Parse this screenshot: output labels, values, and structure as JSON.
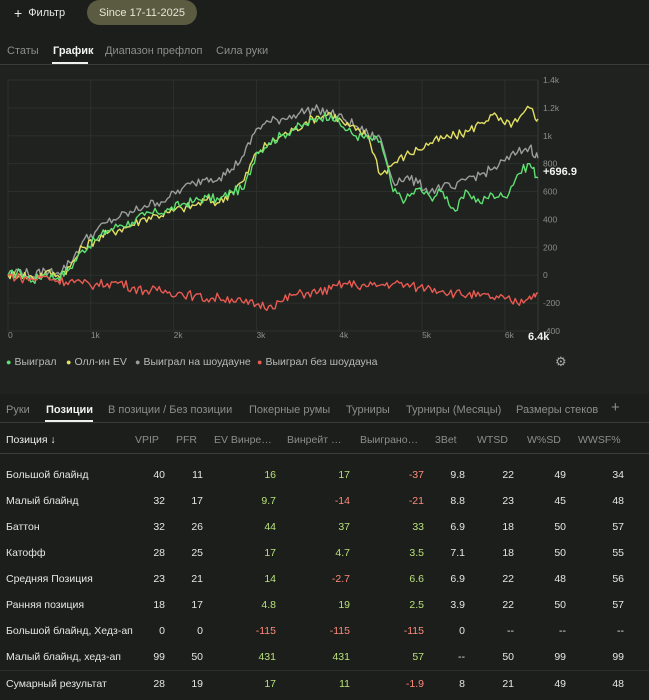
{
  "filterbar": {
    "filter_label": "Фильтр",
    "date_chip": "Since 17-11-2025"
  },
  "top_tabs": [
    "Статы",
    "График",
    "Диапазон префлоп",
    "Сила руки"
  ],
  "top_tabs_active": "График",
  "chart_data": {
    "type": "line",
    "x_tick_labels": [
      "0",
      "1k",
      "2k",
      "3k",
      "4k",
      "5k",
      "6k"
    ],
    "x_max_label": "6.4k",
    "x_range": [
      0,
      6400
    ],
    "y_tick_labels": [
      "1.4k",
      "1.2k",
      "1k",
      "800",
      "600",
      "400",
      "200",
      "0",
      "-200",
      "-400"
    ],
    "y_range": [
      -400,
      1400
    ],
    "current_value_label": "+696.9",
    "grid": true,
    "series": [
      {
        "name": "Выиграл",
        "color": "#5fe072",
        "x": [
          0,
          150,
          300,
          450,
          600,
          750,
          900,
          1050,
          1200,
          1350,
          1500,
          1650,
          1800,
          1950,
          2100,
          2250,
          2400,
          2550,
          2700,
          2850,
          3000,
          3150,
          3300,
          3450,
          3600,
          3750,
          3900,
          4050,
          4200,
          4350,
          4500,
          4650,
          4800,
          4950,
          5100,
          5250,
          5400,
          5550,
          5700,
          5850,
          6000,
          6150,
          6300,
          6400
        ],
        "y": [
          0,
          20,
          -40,
          10,
          -20,
          50,
          180,
          250,
          320,
          360,
          380,
          430,
          450,
          470,
          510,
          530,
          560,
          540,
          600,
          620,
          880,
          950,
          1000,
          1050,
          1080,
          1130,
          1150,
          1060,
          1000,
          980,
          960,
          600,
          540,
          620,
          560,
          600,
          460,
          600,
          520,
          580,
          560,
          720,
          800,
          697
        ]
      },
      {
        "name": "Олл-ин EV",
        "color": "#e3e061",
        "x": [
          0,
          150,
          300,
          450,
          600,
          750,
          900,
          1050,
          1200,
          1350,
          1500,
          1650,
          1800,
          1950,
          2100,
          2250,
          2400,
          2550,
          2700,
          2850,
          3000,
          3150,
          3300,
          3450,
          3600,
          3750,
          3900,
          4050,
          4200,
          4350,
          4500,
          4650,
          4800,
          4950,
          5100,
          5250,
          5400,
          5550,
          5700,
          5850,
          6000,
          6150,
          6300,
          6400
        ],
        "y": [
          0,
          10,
          -20,
          20,
          0,
          60,
          200,
          250,
          300,
          330,
          360,
          410,
          430,
          450,
          480,
          500,
          540,
          520,
          600,
          680,
          880,
          940,
          1000,
          1040,
          1100,
          1140,
          1160,
          1090,
          1040,
          1000,
          720,
          800,
          860,
          900,
          950,
          980,
          1000,
          1030,
          1090,
          1150,
          1080,
          1100,
          1200,
          1120
        ]
      },
      {
        "name": "Выиграл на шоудауне",
        "color": "#9a9d9a",
        "x": [
          0,
          150,
          300,
          450,
          600,
          750,
          900,
          1050,
          1200,
          1350,
          1500,
          1650,
          1800,
          1950,
          2100,
          2250,
          2400,
          2550,
          2700,
          2850,
          3000,
          3150,
          3300,
          3450,
          3600,
          3750,
          3900,
          4050,
          4200,
          4350,
          4500,
          4650,
          4800,
          4950,
          5100,
          5250,
          5400,
          5550,
          5700,
          5850,
          6000,
          6150,
          6300,
          6400
        ],
        "y": [
          0,
          40,
          -10,
          30,
          20,
          90,
          240,
          310,
          380,
          420,
          450,
          500,
          520,
          560,
          620,
          660,
          700,
          700,
          760,
          860,
          1050,
          1100,
          1120,
          1150,
          1180,
          1190,
          1160,
          1120,
          1070,
          1010,
          980,
          670,
          700,
          660,
          600,
          640,
          620,
          700,
          720,
          760,
          820,
          880,
          920,
          840
        ]
      },
      {
        "name": "Выиграл без шоудауна",
        "color": "#e85a52",
        "x": [
          0,
          150,
          300,
          450,
          600,
          750,
          900,
          1050,
          1200,
          1350,
          1500,
          1650,
          1800,
          1950,
          2100,
          2250,
          2400,
          2550,
          2700,
          2850,
          3000,
          3150,
          3300,
          3450,
          3600,
          3750,
          3900,
          4050,
          4200,
          4350,
          4500,
          4650,
          4800,
          4950,
          5100,
          5250,
          5400,
          5550,
          5700,
          5850,
          6000,
          6150,
          6300,
          6400
        ],
        "y": [
          0,
          -20,
          -30,
          -10,
          -40,
          -40,
          -60,
          -70,
          -60,
          -50,
          -90,
          -110,
          -110,
          -120,
          -130,
          -150,
          -170,
          -160,
          -170,
          -200,
          -210,
          -220,
          -190,
          -140,
          -130,
          -120,
          -100,
          -60,
          -70,
          -80,
          -70,
          -60,
          -70,
          -90,
          -90,
          -110,
          -130,
          -140,
          -150,
          -160,
          -170,
          -200,
          -150,
          -130
        ]
      }
    ]
  },
  "legend_gear": "gear-icon",
  "bottom_tabs": [
    "Руки",
    "Позиции",
    "В позиции / Без позиции",
    "Покерные румы",
    "Турниры",
    "Турниры (Месяцы)",
    "Размеры стеков"
  ],
  "bottom_tabs_active": "Позиции",
  "table": {
    "headers": [
      "Позиция ↓",
      "VPIP",
      "PFR",
      "EV Винре…",
      "Винрейт …",
      "Выиграно…",
      "3Bet",
      "WTSD",
      "W%SD",
      "WWSF%"
    ],
    "rows": [
      [
        "Большой блайнд",
        "40",
        "11",
        "16",
        "17",
        "-37",
        "9.8",
        "22",
        "49",
        "34"
      ],
      [
        "Малый блайнд",
        "32",
        "17",
        "9.7",
        "-14",
        "-21",
        "8.8",
        "23",
        "45",
        "48"
      ],
      [
        "Баттон",
        "32",
        "26",
        "44",
        "37",
        "33",
        "6.9",
        "18",
        "50",
        "57"
      ],
      [
        "Катофф",
        "28",
        "25",
        "17",
        "4.7",
        "3.5",
        "7.1",
        "18",
        "50",
        "55"
      ],
      [
        "Средняя Позиция",
        "23",
        "21",
        "14",
        "-2.7",
        "6.6",
        "6.9",
        "22",
        "48",
        "56"
      ],
      [
        "Ранняя позиция",
        "18",
        "17",
        "4.8",
        "19",
        "2.5",
        "3.9",
        "22",
        "50",
        "57"
      ],
      [
        "Большой блайнд, Хедз-ап",
        "0",
        "0",
        "-115",
        "-115",
        "-115",
        "0",
        "--",
        "--",
        "--"
      ],
      [
        "Малый блайнд, хедз-ап",
        "99",
        "50",
        "431",
        "431",
        "57",
        "--",
        "50",
        "99",
        "99"
      ]
    ],
    "total": [
      "Сумарный результат",
      "28",
      "19",
      "17",
      "11",
      "-1.9",
      "8",
      "21",
      "49",
      "48"
    ]
  }
}
